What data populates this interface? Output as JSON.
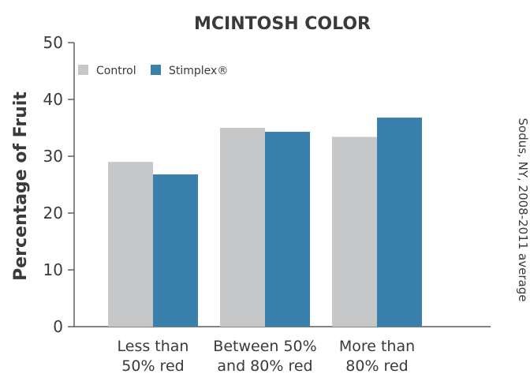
{
  "chart_data": {
    "type": "bar",
    "title": "MCINTOSH COLOR",
    "ylabel": "Percentage of Fruit",
    "xlabel": "",
    "ylim": [
      0,
      50
    ],
    "yticks": [
      0,
      10,
      20,
      30,
      40,
      50
    ],
    "categories": [
      [
        "Less than",
        "50% red"
      ],
      [
        "Between 50%",
        "and 80% red"
      ],
      [
        "More than",
        "80% red"
      ]
    ],
    "series": [
      {
        "name": "Control",
        "values": [
          29.0,
          35.0,
          33.4
        ],
        "color": "#c6c7c8"
      },
      {
        "name": "Stimplex",
        "values": [
          26.8,
          34.3,
          36.8
        ],
        "color": "#3a80ad"
      }
    ],
    "legend": {
      "placement": "top-left",
      "labels": [
        "Control",
        "Stimplex®"
      ]
    },
    "grid": false,
    "side_note": "Sodus, NY, 2008-2011 average"
  }
}
